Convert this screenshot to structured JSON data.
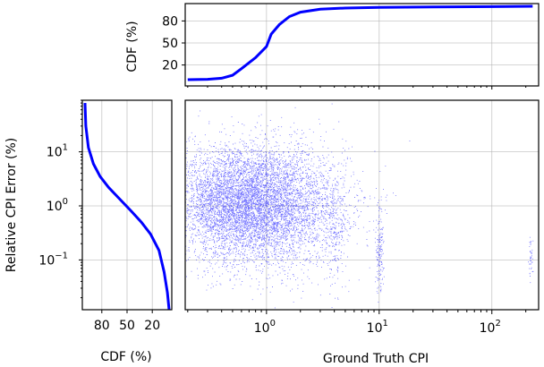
{
  "chart_data": [
    {
      "panel": "top-marginal",
      "type": "line",
      "x_scale": "log",
      "ylabel": "CDF (%)",
      "yticks": [
        "20",
        "50",
        "80"
      ],
      "grid": true,
      "line_color": "#0000ff",
      "x": [
        0.2,
        0.3,
        0.4,
        0.5,
        0.6,
        0.8,
        1.0,
        1.1,
        1.3,
        1.6,
        2.0,
        3.0,
        5.0,
        10,
        30,
        100,
        230
      ],
      "y": [
        0,
        0.5,
        2,
        6,
        15,
        30,
        45,
        62,
        75,
        86,
        92,
        96,
        97.5,
        98.5,
        99,
        99.5,
        100
      ]
    },
    {
      "panel": "left-marginal",
      "type": "line",
      "y_scale": "log",
      "xlabel": "CDF (%)",
      "ylabel": "Relative CPI Error (%)",
      "xticks": [
        "80",
        "50",
        "20"
      ],
      "yticks": [
        "10^{-1}",
        "10^{0}",
        "10^{1}"
      ],
      "x_reversed": true,
      "grid": true,
      "line_color": "#0000ff",
      "x_cdf": [
        100,
        99,
        96,
        90,
        82,
        72,
        58,
        45,
        33,
        22,
        12,
        6,
        2,
        0
      ],
      "y_error": [
        80,
        30,
        12,
        6,
        3.5,
        2.2,
        1.3,
        0.8,
        0.5,
        0.3,
        0.15,
        0.06,
        0.025,
        0.012
      ]
    },
    {
      "panel": "scatter",
      "type": "scatter",
      "x_scale": "log",
      "y_scale": "log",
      "xlabel": "Ground Truth CPI",
      "xticks": [
        "10^{0}",
        "10^{1}",
        "10^{2}"
      ],
      "grid": true,
      "point_color": "#0000ff",
      "xlim": [
        0.19,
        260
      ],
      "ylim": [
        0.012,
        90
      ],
      "clusters": [
        {
          "x_center": 1.0,
          "y_center": 1.0,
          "x_spread": 0.35,
          "y_spread": 0.55
        },
        {
          "x_center": 0.5,
          "y_center": 1.2,
          "x_spread": 0.25,
          "y_spread": 0.5
        },
        {
          "x_center": 4.0,
          "y_center": 0.3,
          "x_spread": 0.05,
          "y_spread": 0.5
        },
        {
          "x_center": 10.0,
          "y_center": 0.15,
          "x_spread": 0.02,
          "y_spread": 0.4
        },
        {
          "x_center": 220.0,
          "y_center": 0.1,
          "x_spread": 0.01,
          "y_spread": 0.2
        }
      ]
    }
  ]
}
